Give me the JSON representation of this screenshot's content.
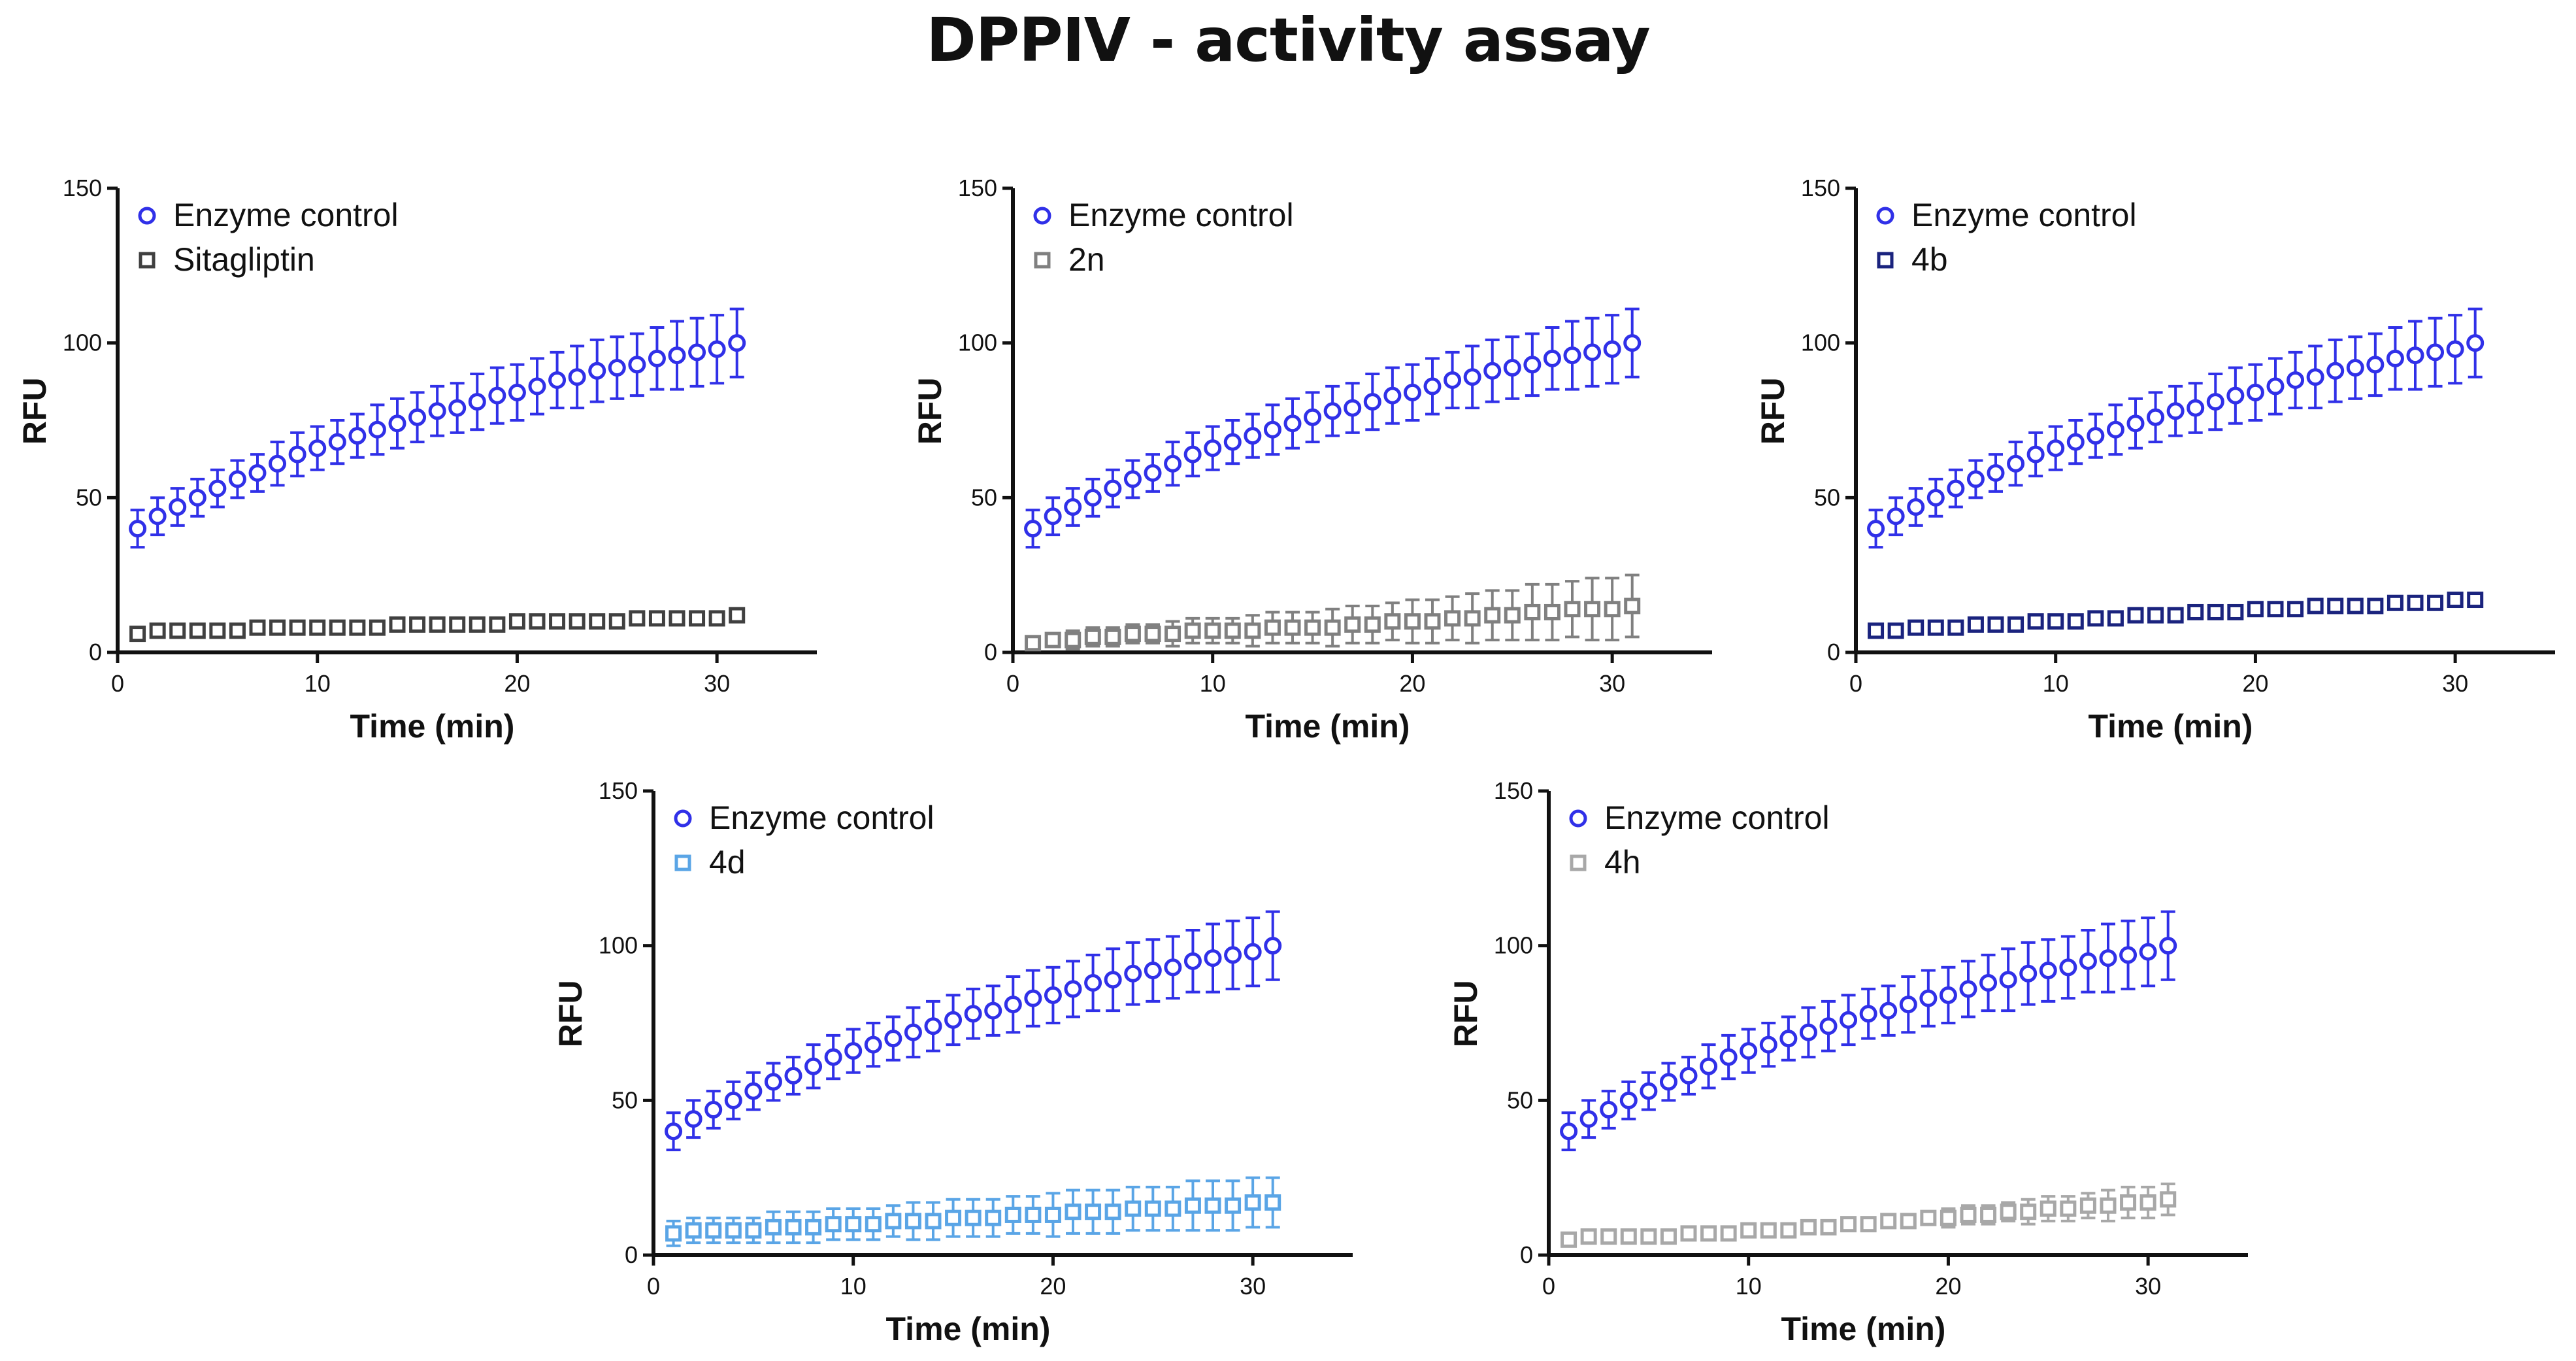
{
  "figure": {
    "title": "DPPIV - activity assay"
  },
  "colors": {
    "enzyme": "#3030E8",
    "sitagliptin": "#404040",
    "2n": "#808080",
    "4b": "#1A237E",
    "4d": "#5AA5E6",
    "4h": "#A8A8A8"
  },
  "chart_data": [
    {
      "type": "scatter",
      "title": "",
      "xlabel": "Time (min)",
      "ylabel": "RFU",
      "xlim": [
        0,
        35
      ],
      "ylim": [
        0,
        150
      ],
      "xticks": [
        0,
        10,
        20,
        30
      ],
      "yticks": [
        0,
        50,
        100,
        150
      ],
      "legend_position": "top-left",
      "series": [
        {
          "name": "Enzyme control",
          "marker": "circle",
          "color_key": "enzyme",
          "x": [
            1,
            2,
            3,
            4,
            5,
            6,
            7,
            8,
            9,
            10,
            11,
            12,
            13,
            14,
            15,
            16,
            17,
            18,
            19,
            20,
            21,
            22,
            23,
            24,
            25,
            26,
            27,
            28,
            29,
            30,
            31
          ],
          "y": [
            40,
            44,
            47,
            50,
            53,
            56,
            58,
            61,
            64,
            66,
            68,
            70,
            72,
            74,
            76,
            78,
            79,
            81,
            83,
            84,
            86,
            88,
            89,
            91,
            92,
            93,
            95,
            96,
            97,
            98,
            100
          ],
          "err": [
            6,
            6,
            6,
            6,
            6,
            6,
            6,
            7,
            7,
            7,
            7,
            7,
            8,
            8,
            8,
            8,
            8,
            9,
            9,
            9,
            9,
            9,
            10,
            10,
            10,
            10,
            10,
            11,
            11,
            11,
            11
          ]
        },
        {
          "name": "Sitagliptin",
          "marker": "square",
          "color_key": "sitagliptin",
          "x": [
            1,
            2,
            3,
            4,
            5,
            6,
            7,
            8,
            9,
            10,
            11,
            12,
            13,
            14,
            15,
            16,
            17,
            18,
            19,
            20,
            21,
            22,
            23,
            24,
            25,
            26,
            27,
            28,
            29,
            30,
            31
          ],
          "y": [
            6,
            7,
            7,
            7,
            7,
            7,
            8,
            8,
            8,
            8,
            8,
            8,
            8,
            9,
            9,
            9,
            9,
            9,
            9,
            10,
            10,
            10,
            10,
            10,
            10,
            11,
            11,
            11,
            11,
            11,
            12
          ],
          "err": [
            1,
            1,
            1,
            1,
            1,
            1,
            1,
            1,
            1,
            1,
            1,
            1,
            1,
            1,
            1,
            1,
            1,
            1,
            1,
            1,
            1,
            1,
            1,
            1,
            1,
            1,
            1,
            1,
            1,
            1,
            1
          ]
        }
      ]
    },
    {
      "type": "scatter",
      "title": "",
      "xlabel": "Time (min)",
      "ylabel": "RFU",
      "xlim": [
        0,
        35
      ],
      "ylim": [
        0,
        150
      ],
      "xticks": [
        0,
        10,
        20,
        30
      ],
      "yticks": [
        0,
        50,
        100,
        150
      ],
      "legend_position": "top-left",
      "series": [
        {
          "name": "Enzyme control",
          "marker": "circle",
          "color_key": "enzyme",
          "x": [
            1,
            2,
            3,
            4,
            5,
            6,
            7,
            8,
            9,
            10,
            11,
            12,
            13,
            14,
            15,
            16,
            17,
            18,
            19,
            20,
            21,
            22,
            23,
            24,
            25,
            26,
            27,
            28,
            29,
            30,
            31
          ],
          "y": [
            40,
            44,
            47,
            50,
            53,
            56,
            58,
            61,
            64,
            66,
            68,
            70,
            72,
            74,
            76,
            78,
            79,
            81,
            83,
            84,
            86,
            88,
            89,
            91,
            92,
            93,
            95,
            96,
            97,
            98,
            100
          ],
          "err": [
            6,
            6,
            6,
            6,
            6,
            6,
            6,
            7,
            7,
            7,
            7,
            7,
            8,
            8,
            8,
            8,
            8,
            9,
            9,
            9,
            9,
            9,
            10,
            10,
            10,
            10,
            10,
            11,
            11,
            11,
            11
          ]
        },
        {
          "name": "2n",
          "marker": "square",
          "color_key": "2n",
          "x": [
            1,
            2,
            3,
            4,
            5,
            6,
            7,
            8,
            9,
            10,
            11,
            12,
            13,
            14,
            15,
            16,
            17,
            18,
            19,
            20,
            21,
            22,
            23,
            24,
            25,
            26,
            27,
            28,
            29,
            30,
            31
          ],
          "y": [
            3,
            4,
            4,
            5,
            5,
            6,
            6,
            6,
            7,
            7,
            7,
            7,
            8,
            8,
            8,
            8,
            9,
            9,
            10,
            10,
            10,
            11,
            11,
            12,
            12,
            13,
            13,
            14,
            14,
            14,
            15
          ],
          "err": [
            2,
            2,
            3,
            3,
            3,
            3,
            3,
            4,
            4,
            4,
            4,
            5,
            5,
            5,
            5,
            6,
            6,
            6,
            6,
            7,
            7,
            7,
            8,
            8,
            8,
            9,
            9,
            9,
            10,
            10,
            10
          ]
        }
      ]
    },
    {
      "type": "scatter",
      "title": "",
      "xlabel": "Time (min)",
      "ylabel": "RFU",
      "xlim": [
        0,
        35
      ],
      "ylim": [
        0,
        150
      ],
      "xticks": [
        0,
        10,
        20,
        30
      ],
      "yticks": [
        0,
        50,
        100,
        150
      ],
      "legend_position": "top-left",
      "series": [
        {
          "name": "Enzyme control",
          "marker": "circle",
          "color_key": "enzyme",
          "x": [
            1,
            2,
            3,
            4,
            5,
            6,
            7,
            8,
            9,
            10,
            11,
            12,
            13,
            14,
            15,
            16,
            17,
            18,
            19,
            20,
            21,
            22,
            23,
            24,
            25,
            26,
            27,
            28,
            29,
            30,
            31
          ],
          "y": [
            40,
            44,
            47,
            50,
            53,
            56,
            58,
            61,
            64,
            66,
            68,
            70,
            72,
            74,
            76,
            78,
            79,
            81,
            83,
            84,
            86,
            88,
            89,
            91,
            92,
            93,
            95,
            96,
            97,
            98,
            100
          ],
          "err": [
            6,
            6,
            6,
            6,
            6,
            6,
            6,
            7,
            7,
            7,
            7,
            7,
            8,
            8,
            8,
            8,
            8,
            9,
            9,
            9,
            9,
            9,
            10,
            10,
            10,
            10,
            10,
            11,
            11,
            11,
            11
          ]
        },
        {
          "name": "4b",
          "marker": "square",
          "color_key": "4b",
          "x": [
            1,
            2,
            3,
            4,
            5,
            6,
            7,
            8,
            9,
            10,
            11,
            12,
            13,
            14,
            15,
            16,
            17,
            18,
            19,
            20,
            21,
            22,
            23,
            24,
            25,
            26,
            27,
            28,
            29,
            30,
            31
          ],
          "y": [
            7,
            7,
            8,
            8,
            8,
            9,
            9,
            9,
            10,
            10,
            10,
            11,
            11,
            12,
            12,
            12,
            13,
            13,
            13,
            14,
            14,
            14,
            15,
            15,
            15,
            15,
            16,
            16,
            16,
            17,
            17
          ],
          "err": [
            1,
            1,
            1,
            1,
            1,
            1,
            1,
            1,
            1,
            1,
            1,
            1,
            1,
            1,
            1,
            1,
            1,
            1,
            1,
            1,
            1,
            1,
            1,
            1,
            1,
            1,
            1,
            1,
            1,
            1,
            1
          ]
        }
      ]
    },
    {
      "type": "scatter",
      "title": "",
      "xlabel": "Time (min)",
      "ylabel": "RFU",
      "xlim": [
        0,
        35
      ],
      "ylim": [
        0,
        150
      ],
      "xticks": [
        0,
        10,
        20,
        30
      ],
      "yticks": [
        0,
        50,
        100,
        150
      ],
      "legend_position": "top-left",
      "series": [
        {
          "name": "Enzyme control",
          "marker": "circle",
          "color_key": "enzyme",
          "x": [
            1,
            2,
            3,
            4,
            5,
            6,
            7,
            8,
            9,
            10,
            11,
            12,
            13,
            14,
            15,
            16,
            17,
            18,
            19,
            20,
            21,
            22,
            23,
            24,
            25,
            26,
            27,
            28,
            29,
            30,
            31
          ],
          "y": [
            40,
            44,
            47,
            50,
            53,
            56,
            58,
            61,
            64,
            66,
            68,
            70,
            72,
            74,
            76,
            78,
            79,
            81,
            83,
            84,
            86,
            88,
            89,
            91,
            92,
            93,
            95,
            96,
            97,
            98,
            100
          ],
          "err": [
            6,
            6,
            6,
            6,
            6,
            6,
            6,
            7,
            7,
            7,
            7,
            7,
            8,
            8,
            8,
            8,
            8,
            9,
            9,
            9,
            9,
            9,
            10,
            10,
            10,
            10,
            10,
            11,
            11,
            11,
            11
          ]
        },
        {
          "name": "4d",
          "marker": "square",
          "color_key": "4d",
          "x": [
            1,
            2,
            3,
            4,
            5,
            6,
            7,
            8,
            9,
            10,
            11,
            12,
            13,
            14,
            15,
            16,
            17,
            18,
            19,
            20,
            21,
            22,
            23,
            24,
            25,
            26,
            27,
            28,
            29,
            30,
            31
          ],
          "y": [
            7,
            8,
            8,
            8,
            8,
            9,
            9,
            9,
            10,
            10,
            10,
            11,
            11,
            11,
            12,
            12,
            12,
            13,
            13,
            13,
            14,
            14,
            14,
            15,
            15,
            15,
            16,
            16,
            16,
            17,
            17
          ],
          "err": [
            4,
            4,
            4,
            4,
            4,
            5,
            5,
            5,
            5,
            5,
            5,
            5,
            6,
            6,
            6,
            6,
            6,
            6,
            6,
            7,
            7,
            7,
            7,
            7,
            7,
            7,
            8,
            8,
            8,
            8,
            8
          ]
        }
      ]
    },
    {
      "type": "scatter",
      "title": "",
      "xlabel": "Time (min)",
      "ylabel": "RFU",
      "xlim": [
        0,
        35
      ],
      "ylim": [
        0,
        150
      ],
      "xticks": [
        0,
        10,
        20,
        30
      ],
      "yticks": [
        0,
        50,
        100,
        150
      ],
      "legend_position": "top-left",
      "series": [
        {
          "name": "Enzyme control",
          "marker": "circle",
          "color_key": "enzyme",
          "x": [
            1,
            2,
            3,
            4,
            5,
            6,
            7,
            8,
            9,
            10,
            11,
            12,
            13,
            14,
            15,
            16,
            17,
            18,
            19,
            20,
            21,
            22,
            23,
            24,
            25,
            26,
            27,
            28,
            29,
            30,
            31
          ],
          "y": [
            40,
            44,
            47,
            50,
            53,
            56,
            58,
            61,
            64,
            66,
            68,
            70,
            72,
            74,
            76,
            78,
            79,
            81,
            83,
            84,
            86,
            88,
            89,
            91,
            92,
            93,
            95,
            96,
            97,
            98,
            100
          ],
          "err": [
            6,
            6,
            6,
            6,
            6,
            6,
            6,
            7,
            7,
            7,
            7,
            7,
            8,
            8,
            8,
            8,
            8,
            9,
            9,
            9,
            9,
            9,
            10,
            10,
            10,
            10,
            10,
            11,
            11,
            11,
            11
          ]
        },
        {
          "name": "4h",
          "marker": "square",
          "color_key": "4h",
          "x": [
            1,
            2,
            3,
            4,
            5,
            6,
            7,
            8,
            9,
            10,
            11,
            12,
            13,
            14,
            15,
            16,
            17,
            18,
            19,
            20,
            21,
            22,
            23,
            24,
            25,
            26,
            27,
            28,
            29,
            30,
            31
          ],
          "y": [
            5,
            6,
            6,
            6,
            6,
            6,
            7,
            7,
            7,
            8,
            8,
            8,
            9,
            9,
            10,
            10,
            11,
            11,
            12,
            12,
            13,
            13,
            14,
            14,
            15,
            15,
            16,
            16,
            17,
            17,
            18
          ],
          "err": [
            1,
            1,
            1,
            1,
            1,
            1,
            1,
            1,
            1,
            1,
            1,
            1,
            1,
            1,
            1,
            2,
            2,
            2,
            2,
            3,
            3,
            3,
            3,
            4,
            4,
            4,
            4,
            5,
            5,
            5,
            5
          ]
        }
      ]
    }
  ]
}
